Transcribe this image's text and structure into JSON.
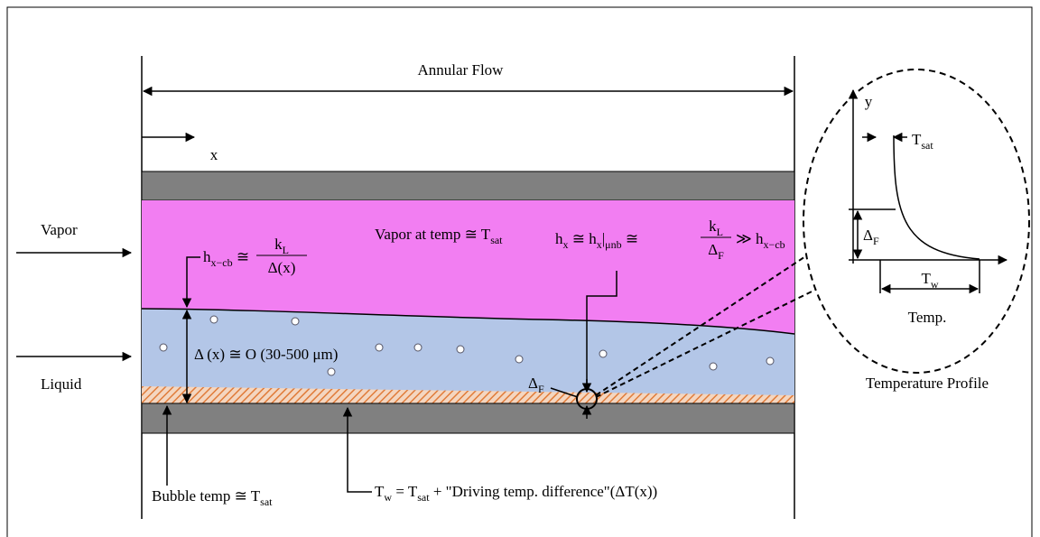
{
  "title": "Annular Flow",
  "x_label": "x",
  "vapor": "Vapor",
  "liquid": "Liquid",
  "vapor_temp": [
    {
      "t": "Vapor at temp ≅ T"
    },
    {
      "sub": "sat"
    }
  ],
  "hxcb": {
    "lhs": [
      {
        "t": "h"
      },
      {
        "sub": "x−cb"
      },
      {
        "t": " ≅"
      }
    ],
    "num": [
      {
        "t": "k"
      },
      {
        "sub": "L"
      }
    ],
    "den": [
      {
        "t": "Δ(x)"
      }
    ]
  },
  "thickness": [
    {
      "t": "Δ (x) ≅ O (30-500 μm)"
    }
  ],
  "hx": {
    "lhs": [
      {
        "t": "h"
      },
      {
        "sub": "x"
      },
      {
        "t": " ≅ h"
      },
      {
        "sub": "x"
      },
      {
        "t": "|"
      },
      {
        "sub": "μnb"
      },
      {
        "t": " ≅"
      }
    ],
    "num": [
      {
        "t": "k"
      },
      {
        "sub": "L"
      }
    ],
    "den": [
      {
        "t": "Δ"
      },
      {
        "sub": "F"
      }
    ],
    "rhs": [
      {
        "t": "≫ h"
      },
      {
        "sub": "x−cb"
      }
    ]
  },
  "delta_f": [
    {
      "t": "Δ"
    },
    {
      "sub": "F"
    }
  ],
  "bubble_temp": [
    {
      "t": "Bubble temp ≅ T"
    },
    {
      "sub": "sat"
    }
  ],
  "wall_temp": [
    {
      "t": "T"
    },
    {
      "sub": "w"
    },
    {
      "t": " = T"
    },
    {
      "sub": "sat"
    },
    {
      "t": " + \"Driving temp. difference\"(ΔT(x))"
    }
  ],
  "inset": {
    "y": "y",
    "tsat": [
      {
        "t": "T"
      },
      {
        "sub": "sat"
      }
    ],
    "delta_f": [
      {
        "t": "Δ"
      },
      {
        "sub": "F"
      }
    ],
    "tw": [
      {
        "t": "T"
      },
      {
        "sub": "w"
      }
    ],
    "temp": "Temp.",
    "caption": "Temperature Profile"
  }
}
